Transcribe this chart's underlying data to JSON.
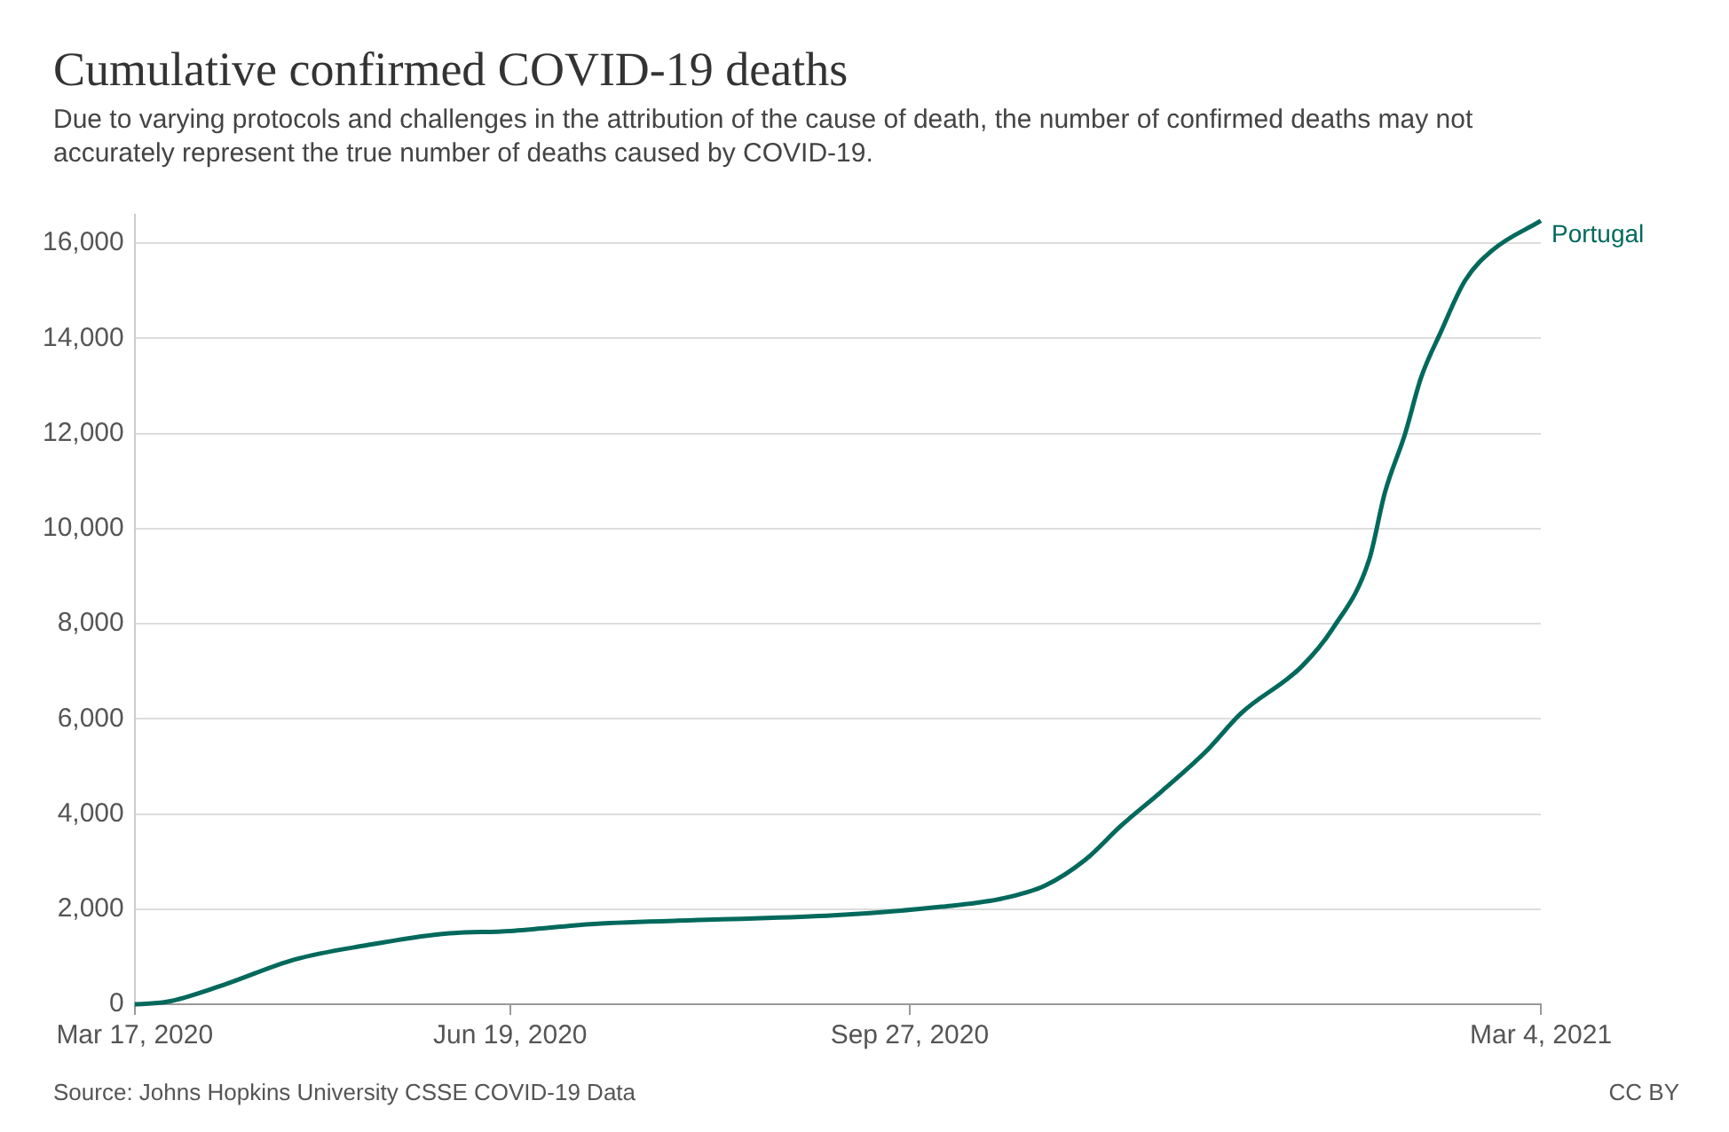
{
  "chart_data": {
    "type": "line",
    "title": "Cumulative confirmed COVID-19 deaths",
    "subtitle": "Due to varying protocols and challenges in the attribution of the cause of death, the number of confirmed deaths may not accurately represent the true number of deaths caused by COVID-19.",
    "annotations": [
      "Source: Johns Hopkins University CSSE COVID-19 Data",
      "CC BY"
    ],
    "x": [
      "2020-03-17",
      "2020-03-25",
      "2020-04-08",
      "2020-04-26",
      "2020-05-14",
      "2020-06-02",
      "2020-06-19",
      "2020-07-10",
      "2020-08-09",
      "2020-09-08",
      "2020-10-05",
      "2020-10-20",
      "2020-10-31",
      "2020-11-10",
      "2020-11-19",
      "2020-11-29",
      "2020-12-10",
      "2020-12-19",
      "2021-01-03",
      "2021-01-11",
      "2021-01-20",
      "2021-01-24",
      "2021-01-29",
      "2021-02-02",
      "2021-02-07",
      "2021-02-13",
      "2021-02-20",
      "2021-03-04"
    ],
    "series": [
      {
        "name": "Portugal",
        "color": "#00695c",
        "values": [
          0,
          50,
          400,
          940,
          1240,
          1480,
          1540,
          1690,
          1780,
          1870,
          2050,
          2220,
          2500,
          3040,
          3760,
          4470,
          5300,
          6120,
          7090,
          7910,
          9340,
          10770,
          11990,
          13170,
          14140,
          15210,
          15860,
          16470
        ]
      }
    ],
    "xlim": [
      "2020-03-17",
      "2021-03-04"
    ],
    "xticks": [
      {
        "value": "2020-03-17",
        "label": "Mar 17, 2020"
      },
      {
        "value": "2020-06-19",
        "label": "Jun 19, 2020"
      },
      {
        "value": "2020-09-27",
        "label": "Sep 27, 2020"
      },
      {
        "value": "2021-03-04",
        "label": "Mar 4, 2021"
      }
    ],
    "ylim": [
      0,
      16600
    ],
    "yticks": [
      {
        "value": 0,
        "label": "0"
      },
      {
        "value": 2000,
        "label": "2,000"
      },
      {
        "value": 4000,
        "label": "4,000"
      },
      {
        "value": 6000,
        "label": "6,000"
      },
      {
        "value": 8000,
        "label": "8,000"
      },
      {
        "value": 10000,
        "label": "10,000"
      },
      {
        "value": 12000,
        "label": "12,000"
      },
      {
        "value": 14000,
        "label": "14,000"
      },
      {
        "value": 16000,
        "label": "16,000"
      }
    ],
    "grid": "y",
    "legend": false,
    "marker": "none",
    "line_style": "solid"
  }
}
